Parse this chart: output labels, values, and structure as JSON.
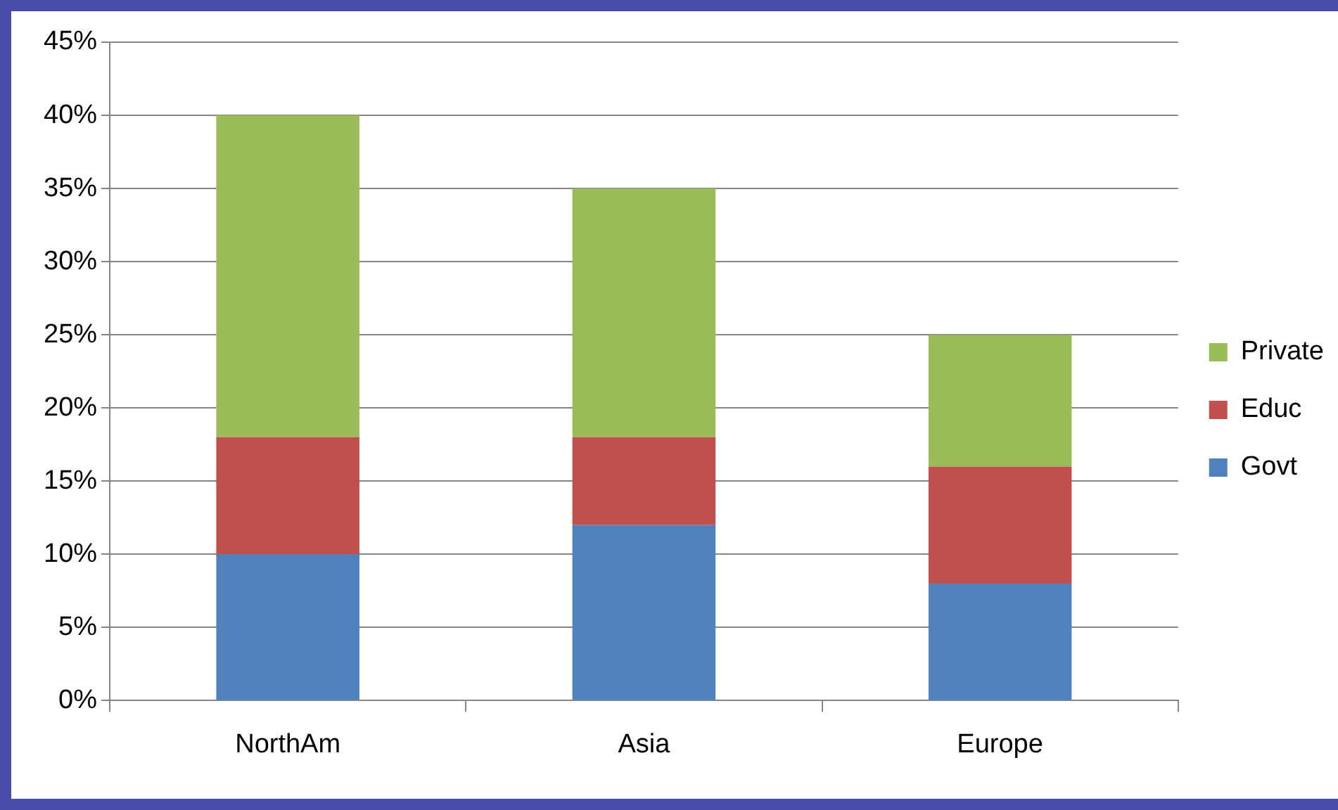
{
  "chart_data": {
    "type": "bar",
    "stacked": true,
    "categories": [
      "NorthAm",
      "Asia",
      "Europe"
    ],
    "series": [
      {
        "name": "Govt",
        "color": "#4f81bd",
        "values": [
          10,
          12,
          8
        ]
      },
      {
        "name": "Educ",
        "color": "#c0504d",
        "values": [
          8,
          6,
          8
        ]
      },
      {
        "name": "Private",
        "color": "#9bbb59",
        "values": [
          22,
          17,
          9
        ]
      }
    ],
    "ylim": [
      0,
      45
    ],
    "yticks": [
      {
        "value": 0,
        "label": "0%"
      },
      {
        "value": 5,
        "label": "5%"
      },
      {
        "value": 10,
        "label": "10%"
      },
      {
        "value": 15,
        "label": "15%"
      },
      {
        "value": 20,
        "label": "20%"
      },
      {
        "value": 25,
        "label": "25%"
      },
      {
        "value": 30,
        "label": "30%"
      },
      {
        "value": 35,
        "label": "35%"
      },
      {
        "value": 40,
        "label": "40%"
      },
      {
        "value": 45,
        "label": "45%"
      }
    ],
    "grid": "y",
    "legend": "right"
  }
}
